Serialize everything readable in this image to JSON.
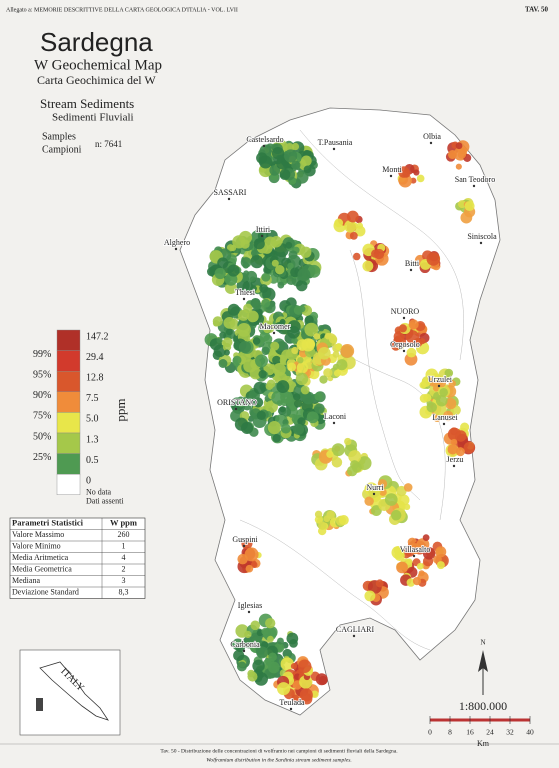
{
  "header": {
    "left": "Allegato a: MEMORIE DESCRITTIVE DELLA CARTA GEOLOGICA D'ITALIA - VOL. LVII",
    "right": "TAV. 50"
  },
  "title": {
    "region": "Sardegna",
    "map_en": "W Geochemical Map",
    "map_it": "Carta Geochimica del W",
    "medium_en": "Stream Sediments",
    "medium_it": "Sedimenti Fluviali",
    "samples_en": "Samples",
    "samples_it": "Campioni",
    "count": "n: 7641"
  },
  "legend": {
    "unit": "ppm",
    "values": [
      "147.2",
      "29.4",
      "12.8",
      "7.5",
      "5.0",
      "1.3",
      "0.5",
      "0"
    ],
    "percentiles": [
      "99%",
      "95%",
      "90%",
      "75%",
      "50%",
      "25%"
    ],
    "no_data": [
      "No data",
      "Dati assenti"
    ]
  },
  "stats": {
    "header": [
      "Parametri Statistici",
      "W ppm"
    ],
    "rows": [
      [
        "Valore Massimo",
        "260"
      ],
      [
        "Valore Minimo",
        "1"
      ],
      [
        "Media Aritmetica",
        "4"
      ],
      [
        "Media Geometrica",
        "2"
      ],
      [
        "Mediana",
        "3"
      ],
      [
        "Deviazione Standard",
        "8,3"
      ]
    ]
  },
  "places": [
    "Castelsardo",
    "T.Pausania",
    "Olbia",
    "Monti",
    "SASSARI",
    "San Teodoro",
    "Siniscola",
    "Alghero",
    "Ittiri",
    "Bitti",
    "Thiesi",
    "Macomer",
    "NUORO",
    "Orgosolo",
    "Urzulei",
    "ORISTANO",
    "Laconi",
    "Lanusei",
    "Jerzu",
    "Nurri",
    "Villasalto",
    "Guspini",
    "Iglesias",
    "CAGLIARI",
    "Carbonia",
    "Teulada"
  ],
  "scale": {
    "ratio": "1:800.000",
    "ticks": [
      "0",
      "8",
      "16",
      "24",
      "32",
      "40"
    ],
    "unit": "Km"
  },
  "north": "N",
  "inset": "ITALY",
  "caption": {
    "it": "Tav. 50 - Distribuzione delle concentrazioni di wolframio nei campioni di sedimenti fluviali della Sardegna.",
    "en": "Wolframium distribution in the Sardinia stream sediment samples."
  }
}
